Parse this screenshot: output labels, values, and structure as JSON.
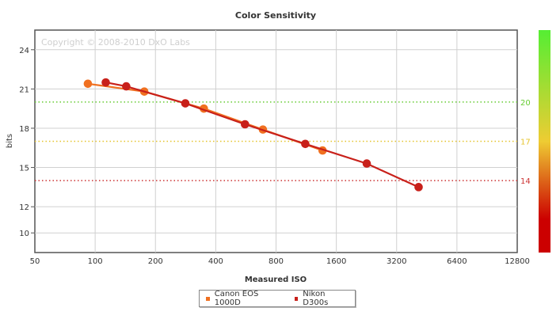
{
  "chart_data": {
    "type": "line",
    "title": "Color Sensitivity",
    "watermark": "Copyright © 2008-2010 DxO Labs",
    "xlabel": "Measured ISO",
    "ylabel": "bits",
    "x_scale": "log2",
    "xlim": [
      50,
      12800
    ],
    "ylim": [
      8.5,
      25.5
    ],
    "x_ticks": [
      50,
      100,
      200,
      400,
      800,
      1600,
      3200,
      6400,
      12800
    ],
    "x_tick_labels": [
      "50",
      "100",
      "200",
      "400",
      "800",
      "1600",
      "3200",
      "6400",
      "12800"
    ],
    "y_ticks": [
      10,
      12,
      15,
      18,
      21,
      24
    ],
    "y_tick_labels": [
      "10",
      "12",
      "15",
      "18",
      "21",
      "24"
    ],
    "grid": true,
    "reference_lines": [
      {
        "value": 20,
        "label": "20",
        "color": "#66cc33"
      },
      {
        "value": 17,
        "label": "17",
        "color": "#e6c42e"
      },
      {
        "value": 14,
        "label": "14",
        "color": "#cc3333"
      }
    ],
    "color_scale": {
      "top_color": "#55ee33",
      "mid_color": "#eecc33",
      "bottom_color": "#cc0000"
    },
    "legend_position": "bottom-center",
    "series": [
      {
        "name": "Canon EOS 1000D",
        "color": "#f07020",
        "points": [
          [
            92,
            21.4
          ],
          [
            176,
            20.8
          ],
          [
            349,
            19.5
          ],
          [
            688,
            17.9
          ],
          [
            1366,
            16.3
          ]
        ]
      },
      {
        "name": "Nikon D300s",
        "color": "#c8201a",
        "points": [
          [
            113,
            21.5
          ],
          [
            143,
            21.2
          ],
          [
            282,
            19.9
          ],
          [
            560,
            18.3
          ],
          [
            1120,
            16.8
          ],
          [
            2270,
            15.3
          ],
          [
            4120,
            13.5
          ]
        ]
      }
    ]
  }
}
